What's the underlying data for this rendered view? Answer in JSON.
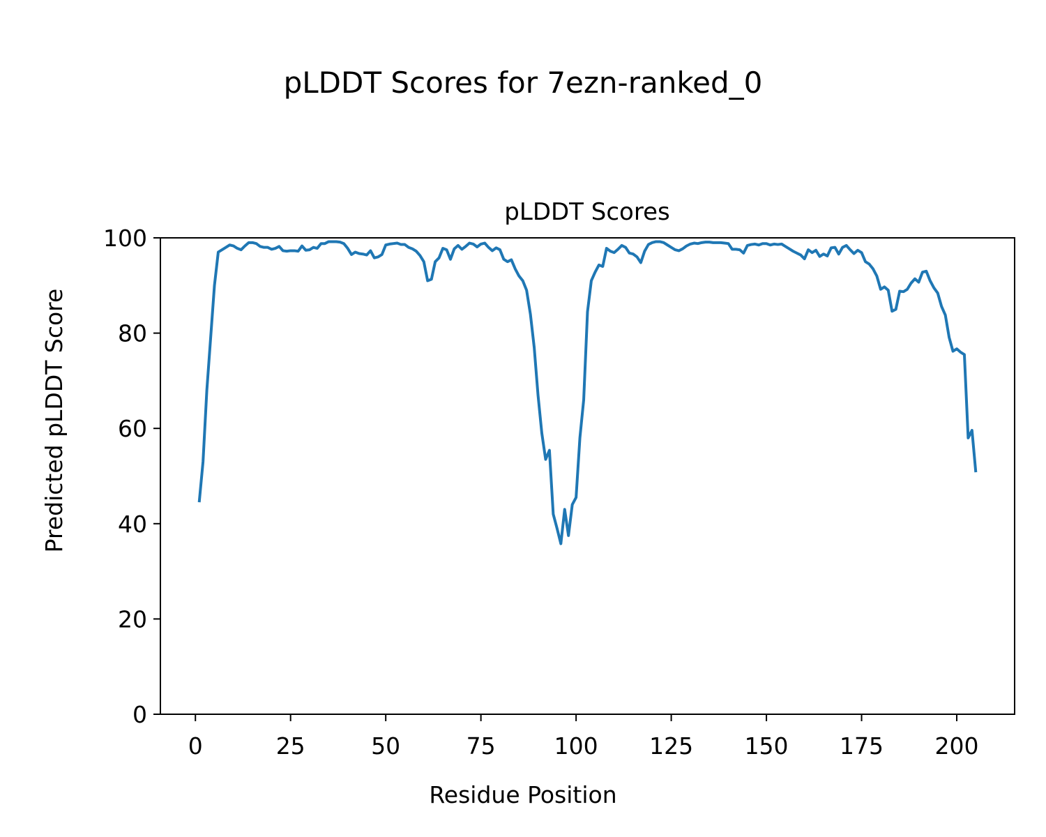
{
  "figure": {
    "suptitle": "pLDDT Scores for 7ezn-ranked_0"
  },
  "chart_data": {
    "type": "line",
    "title": "pLDDT Scores",
    "xlabel": "Residue Position",
    "ylabel": "Predicted pLDDT Score",
    "xlim": [
      -9.2,
      215.2
    ],
    "ylim": [
      0,
      100
    ],
    "xticks": [
      0,
      25,
      50,
      75,
      100,
      125,
      150,
      175,
      200
    ],
    "yticks": [
      0,
      20,
      40,
      60,
      80,
      100
    ],
    "xtick_labels": [
      "0",
      "25",
      "50",
      "75",
      "100",
      "125",
      "150",
      "175",
      "200"
    ],
    "ytick_labels": [
      "0",
      "20",
      "40",
      "60",
      "80",
      "100"
    ],
    "grid": false,
    "line_color": "#1f77b4",
    "series": [
      {
        "x": [
          1,
          2,
          3,
          4,
          5,
          6,
          7,
          8,
          9,
          10,
          11,
          12,
          13,
          14,
          15,
          16,
          17,
          18,
          19,
          20,
          21,
          22,
          23,
          24,
          25,
          26,
          27,
          28,
          29,
          30,
          31,
          32,
          33,
          34,
          35,
          36,
          37,
          38,
          39,
          40,
          41,
          42,
          43,
          44,
          45,
          46,
          47,
          48,
          49,
          50,
          51,
          52,
          53,
          54,
          55,
          56,
          57,
          58,
          59,
          60,
          61,
          62,
          63,
          64,
          65,
          66,
          67,
          68,
          69,
          70,
          71,
          72,
          73,
          74,
          75,
          76,
          77,
          78,
          79,
          80,
          81,
          82,
          83,
          84,
          85,
          86,
          87,
          88,
          89,
          90,
          91,
          92,
          93,
          94,
          95,
          96,
          97,
          98,
          99,
          100,
          101,
          102,
          103,
          104,
          105,
          106,
          107,
          108,
          109,
          110,
          111,
          112,
          113,
          114,
          115,
          116,
          117,
          118,
          119,
          120,
          121,
          122,
          123,
          124,
          125,
          126,
          127,
          128,
          129,
          130,
          131,
          132,
          133,
          134,
          135,
          136,
          137,
          138,
          139,
          140,
          141,
          142,
          143,
          144,
          145,
          146,
          147,
          148,
          149,
          150,
          151,
          152,
          153,
          154,
          155,
          156,
          157,
          158,
          159,
          160,
          161,
          162,
          163,
          164,
          165,
          166,
          167,
          168,
          169,
          170,
          171,
          172,
          173,
          174,
          175,
          176,
          177,
          178,
          179,
          180,
          181,
          182,
          183,
          184,
          185,
          186,
          187,
          188,
          189,
          190,
          191,
          192,
          193,
          194,
          195,
          196,
          197,
          198,
          199,
          200,
          201,
          202,
          203,
          204,
          205
        ],
        "values": [
          44.5,
          53,
          68,
          79,
          90,
          97,
          97.5,
          98,
          98.5,
          98.3,
          97.8,
          97.5,
          98.3,
          99,
          99,
          98.8,
          98.2,
          98,
          98,
          97.6,
          97.8,
          98.2,
          97.3,
          97.2,
          97.3,
          97.3,
          97.2,
          98.3,
          97.4,
          97.5,
          98,
          97.8,
          98.8,
          98.8,
          99.2,
          99.2,
          99.2,
          99.1,
          98.8,
          97.8,
          96.5,
          97,
          96.7,
          96.6,
          96.4,
          97.3,
          95.8,
          96,
          96.5,
          98.5,
          98.7,
          98.8,
          98.9,
          98.6,
          98.6,
          98,
          97.7,
          97.2,
          96.3,
          95,
          91,
          91.3,
          95,
          95.8,
          97.8,
          97.5,
          95.5,
          97.7,
          98.4,
          97.6,
          98.2,
          98.9,
          98.7,
          98.1,
          98.7,
          98.9,
          98,
          97.3,
          97.9,
          97.5,
          95.5,
          95,
          95.4,
          93.5,
          92,
          91,
          89,
          84,
          77,
          67,
          59,
          53.5,
          55.4,
          42,
          39,
          35.8,
          43,
          37.5,
          44,
          45.5,
          58,
          66,
          84.5,
          91,
          92.8,
          94.3,
          94,
          97.8,
          97.2,
          96.9,
          97.6,
          98.4,
          98,
          96.8,
          96.6,
          96,
          94.8,
          97.2,
          98.6,
          99,
          99.2,
          99.2,
          99,
          98.5,
          98,
          97.5,
          97.3,
          97.7,
          98.3,
          98.7,
          98.9,
          98.8,
          99,
          99.1,
          99.1,
          99,
          99,
          99,
          98.9,
          98.8,
          97.6,
          97.6,
          97.5,
          96.8,
          98.4,
          98.6,
          98.7,
          98.5,
          98.8,
          98.8,
          98.5,
          98.7,
          98.6,
          98.7,
          98.2,
          97.7,
          97.2,
          96.8,
          96.4,
          95.6,
          97.5,
          96.9,
          97.4,
          96.1,
          96.6,
          96.2,
          97.9,
          98,
          96.6,
          98,
          98.4,
          97.5,
          96.7,
          97.4,
          96.9,
          95,
          94.5,
          93.5,
          92,
          89.2,
          89.7,
          89,
          84.6,
          85,
          88.8,
          88.7,
          89.2,
          90.5,
          91.4,
          90.7,
          92.8,
          93,
          91,
          89.5,
          88.4,
          85.6,
          83.8,
          79.1,
          76.2,
          76.7,
          76,
          75.5,
          58,
          59.6,
          50.8
        ]
      }
    ]
  }
}
